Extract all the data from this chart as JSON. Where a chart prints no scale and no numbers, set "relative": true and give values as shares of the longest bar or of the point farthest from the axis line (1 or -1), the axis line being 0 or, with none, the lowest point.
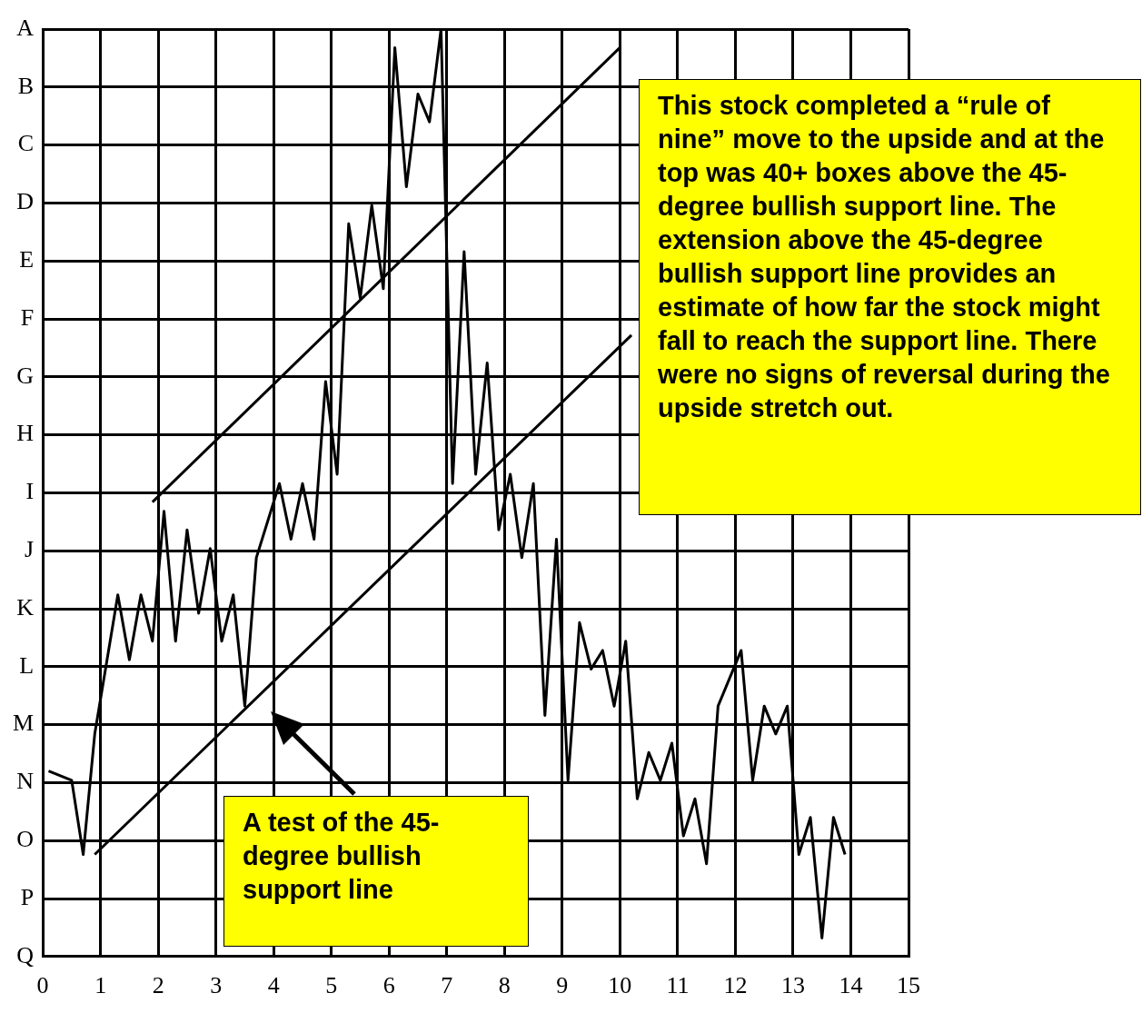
{
  "chart_data": {
    "type": "line",
    "relative": true,
    "xlim": [
      0,
      15
    ],
    "xticks": [
      0,
      1,
      2,
      3,
      4,
      5,
      6,
      7,
      8,
      9,
      10,
      11,
      12,
      13,
      14,
      15
    ],
    "y_categories": [
      "A",
      "B",
      "C",
      "D",
      "E",
      "F",
      "G",
      "H",
      "I",
      "J",
      "K",
      "L",
      "M",
      "N",
      "O",
      "P",
      "Q"
    ],
    "grid": true,
    "legend": false,
    "marker": "none",
    "line_style": "solid",
    "series": [
      {
        "color": "#000000",
        "x": [
          0.1,
          0.5,
          0.7,
          0.9,
          1.3,
          1.5,
          1.7,
          1.9,
          2.1,
          2.3,
          2.5,
          2.7,
          2.9,
          3.1,
          3.3,
          3.5,
          3.7,
          4.1,
          4.3,
          4.5,
          4.7,
          4.9,
          5.1,
          5.3,
          5.5,
          5.7,
          5.9,
          6.1,
          6.3,
          6.5,
          6.7,
          6.9,
          7.1,
          7.3,
          7.5,
          7.7,
          7.9,
          8.1,
          8.3,
          8.5,
          8.7,
          8.9,
          9.1,
          9.3,
          9.5,
          9.7,
          9.9,
          10.1,
          10.3,
          10.5,
          10.7,
          10.9,
          11.1,
          11.3,
          11.5,
          11.7,
          12.1,
          12.3,
          12.5,
          12.7,
          12.9,
          13.1,
          13.3,
          13.5,
          13.7,
          13.9
        ],
        "values": [
          0.2,
          0.19,
          0.11,
          0.24,
          0.39,
          0.32,
          0.39,
          0.34,
          0.48,
          0.34,
          0.46,
          0.37,
          0.44,
          0.34,
          0.39,
          0.27,
          0.43,
          0.51,
          0.45,
          0.51,
          0.45,
          0.62,
          0.52,
          0.79,
          0.71,
          0.81,
          0.72,
          0.98,
          0.83,
          0.93,
          0.9,
          1,
          0.51,
          0.76,
          0.52,
          0.64,
          0.46,
          0.52,
          0.43,
          0.51,
          0.26,
          0.45,
          0.19,
          0.36,
          0.31,
          0.33,
          0.27,
          0.34,
          0.17,
          0.22,
          0.19,
          0.23,
          0.13,
          0.17,
          0.1,
          0.27,
          0.33,
          0.19,
          0.27,
          0.24,
          0.27,
          0.11,
          0.15,
          0.02,
          0.15,
          0.11
        ]
      },
      {
        "type": "line",
        "color": "#000000",
        "x": [
          0.9,
          10.2
        ],
        "values": [
          0.11,
          0.67
        ]
      },
      {
        "type": "line",
        "color": "#000000",
        "x": [
          1.9,
          10.0
        ],
        "values": [
          0.49,
          0.98
        ]
      }
    ],
    "annotations": [
      "This stock completed a “rule of nine” move to the upside and at the top was 40+ boxes above the 45-degree bullish support line. The extension above the 45-degree bullish support line provides an estimate of how far the stock might fall to reach the support line. There were no signs of reversal during the upside stretch out.",
      "A test of the 45-degree bullish support line"
    ]
  }
}
